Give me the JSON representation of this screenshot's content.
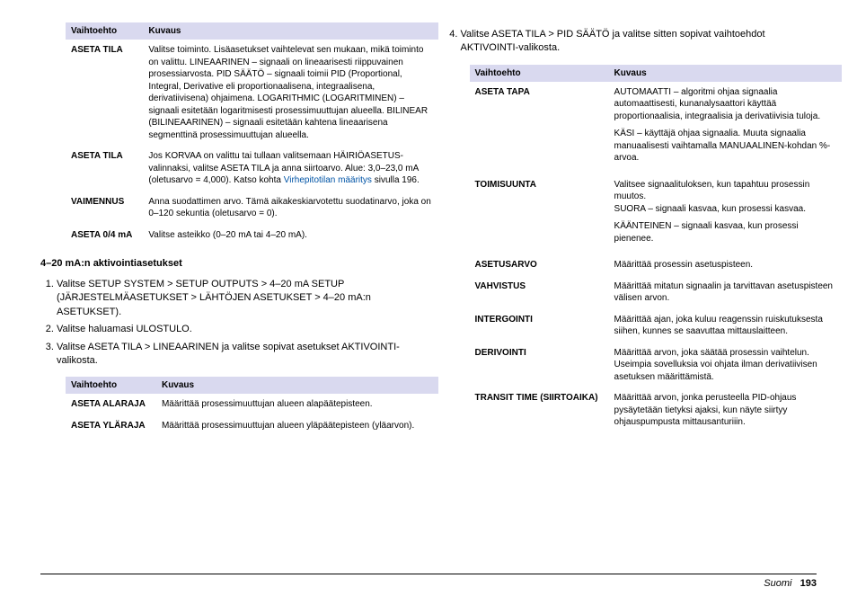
{
  "tables": {
    "topLeft": {
      "headers": [
        "Vaihtoehto",
        "Kuvaus"
      ],
      "rows": [
        {
          "k": "ASETA TILA",
          "v": "Valitse toiminto. Lisäasetukset vaihtelevat sen mukaan, mikä toiminto on valittu. LINEAARINEN – signaali on lineaarisesti riippuvainen prosessiarvosta. PID SÄÄTÖ – signaali toimii PID (Proportional, Integral, Derivative eli proportionaalisena, integraalisena, derivatiivisena) ohjaimena. LOGARITHMIC (LOGARITMINEN) – signaali esitetään logaritmisesti prosessimuuttujan alueella. BILINEAR (BILINEAARINEN) – signaali esitetään kahtena lineaarisena segmenttinä prosessimuuttujan alueella."
        },
        {
          "k": "ASETA TILA",
          "v": "Jos KORVAA on valittu tai tullaan valitsemaan HÄIRIÖASETUS-valinnaksi, valitse ASETA TILA ja anna siirtoarvo. Alue: 3,0–23,0 mA (oletusarvo = 4,000). Katso kohta |LINK|Virhepitotilan määritys|/LINK| sivulla 196."
        },
        {
          "k": "VAIMENNUS",
          "v": "Anna suodattimen arvo. Tämä aikakeskiarvotettu suodatinarvo, joka on 0–120 sekuntia (oletusarvo = 0)."
        },
        {
          "k": "ASETA 0/4 mA",
          "v": "Valitse asteikko (0–20 mA tai 4–20 mA)."
        }
      ]
    },
    "bottomLeft": {
      "headers": [
        "Vaihtoehto",
        "Kuvaus"
      ],
      "rows": [
        {
          "k": "ASETA ALARAJA",
          "v": "Määrittää prosessimuuttujan alueen alapäätepisteen."
        },
        {
          "k": "ASETA YLÄRAJA",
          "v": "Määrittää prosessimuuttujan alueen yläpäätepisteen (yläarvon)."
        }
      ]
    },
    "right": {
      "headers": [
        "Vaihtoehto",
        "Kuvaus"
      ],
      "rows": [
        {
          "k": "ASETA TAPA",
          "paras": [
            "AUTOMAATTI – algoritmi ohjaa signaalia automaattisesti, kunanalysaattori käyttää proportionaalisia, integraalisia ja derivatiivisia tuloja.",
            "KÄSI – käyttäjä ohjaa signaalia. Muuta signaalia manuaalisesti vaihtamalla MANUAALINEN-kohdan %-arvoa."
          ]
        },
        {
          "k": "TOIMISUUNTA",
          "paras": [
            "Valitsee signaalituloksen, kun tapahtuu prosessin muutos.\nSUORA – signaali kasvaa, kun prosessi kasvaa.",
            "KÄÄNTEINEN – signaali kasvaa, kun prosessi pienenee."
          ]
        },
        {
          "k": "ASETUSARVO",
          "v": "Määrittää prosessin asetuspisteen."
        },
        {
          "k": "VAHVISTUS",
          "v": "Määrittää mitatun signaalin ja tarvittavan asetuspisteen välisen arvon."
        },
        {
          "k": "INTERGOINTI",
          "v": "Määrittää ajan, joka kuluu reagenssin ruiskutuksesta siihen, kunnes se saavuttaa mittauslaitteen."
        },
        {
          "k": "DERIVOINTI",
          "v": "Määrittää arvon, joka säätää prosessin vaihtelun. Useimpia sovelluksia voi ohjata ilman derivatiivisen asetuksen määrittämistä."
        },
        {
          "k": "TRANSIT TIME (SIIRTOAIKA)",
          "v": "Määrittää arvon, jonka perusteella PID-ohjaus pysäytetään tietyksi ajaksi, kun näyte siirtyy ohjauspumpusta mittausanturiiin."
        }
      ]
    }
  },
  "sectionHead": "4–20 mA:n aktivointiasetukset",
  "stepsLeft": [
    "Valitse SETUP SYSTEM > SETUP OUTPUTS > 4–20 mA SETUP (JÄRJESTELMÄASETUKSET > LÄHTÖJEN ASETUKSET > 4–20 mA:n ASETUKSET).",
    "Valitse haluamasi ULOSTULO.",
    "Valitse ASETA TILA > LINEAARINEN ja valitse sopivat asetukset AKTIVOINTI-valikosta."
  ],
  "stepRight": {
    "num": 4,
    "text": "Valitse ASETA TILA > PID SÄÄTÖ ja valitse sitten sopivat vaihtoehdot AKTIVOINTI-valikosta."
  },
  "footer": {
    "lang": "Suomi",
    "page": "193"
  }
}
